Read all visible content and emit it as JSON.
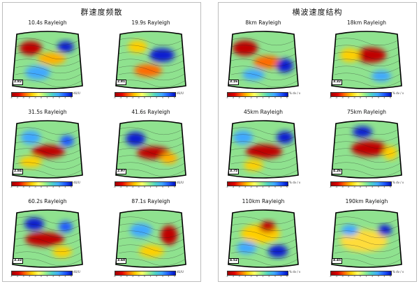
{
  "left": {
    "title": "群速度频散",
    "unit": "dU/U",
    "maps": [
      {
        "label": "10.4s Rayleigh",
        "avg": "2.82"
      },
      {
        "label": "19.9s Rayleigh",
        "avg": "2.81"
      },
      {
        "label": "31.5s Rayleigh",
        "avg": "2.84"
      },
      {
        "label": "41.6s Rayleigh",
        "avg": "2.97"
      },
      {
        "label": "60.2s Rayleigh",
        "avg": "3.33"
      },
      {
        "label": "87.1s Rayleigh",
        "avg": "3.60"
      }
    ]
  },
  "right": {
    "title": "横波速度结构",
    "unit": "% dv / v",
    "maps": [
      {
        "label": "8km Rayleigh",
        "avg": "3.16"
      },
      {
        "label": "18km Rayleigh",
        "avg": "3.32"
      },
      {
        "label": "45km Rayleigh",
        "avg": "3.75"
      },
      {
        "label": "75km Rayleigh",
        "avg": "4.26"
      },
      {
        "label": "110km Rayleigh",
        "avg": "4.52"
      },
      {
        "label": "190km Rayleigh",
        "avg": "4.45"
      }
    ]
  },
  "colorbar_ticks": [
    "-5",
    "-4",
    "-3",
    "-2",
    "-1",
    "0",
    "1",
    "2",
    "3",
    "4",
    "5"
  ],
  "colors": {
    "slow": "#c00000",
    "mid": "#8fe28f",
    "fast": "#0a1fd0",
    "border": "#000000"
  }
}
